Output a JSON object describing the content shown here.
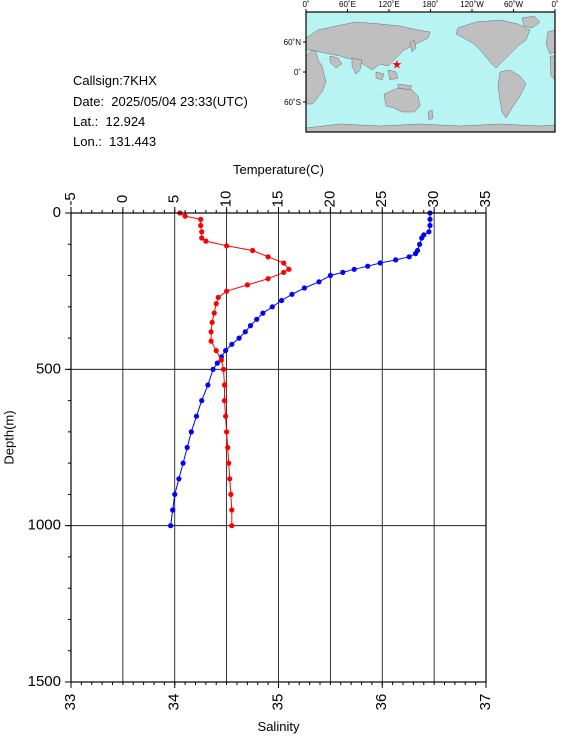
{
  "info": {
    "callsign": "Callsign:7KHX",
    "date": "Date:  2025/05/04 23:33(UTC)",
    "lat": "Lat.:  12.924",
    "lon": "Lon.:  131.443"
  },
  "map": {
    "top_ticks": [
      "0˚",
      "60˚E",
      "120˚E",
      "180˚",
      "120˚W",
      "60˚W",
      "0˚"
    ],
    "left_ticks": [
      "60˚N",
      "0˚",
      "60˚S"
    ],
    "land_color": "#bfbfbf",
    "ocean_color": "#b8f4f4",
    "marker": "red-star",
    "marker_lon": 131.443,
    "marker_lat": 12.924
  },
  "chart_data": {
    "type": "line",
    "top_axis": {
      "label": "Temperature(C)",
      "range": [
        -5,
        35
      ],
      "ticks": [
        "-5",
        "0",
        "5",
        "10",
        "15",
        "20",
        "25",
        "30",
        "35"
      ]
    },
    "bottom_axis": {
      "label": "Salinity",
      "range": [
        33,
        37
      ],
      "ticks": [
        "33",
        "34",
        "35",
        "36",
        "37"
      ]
    },
    "y_axis": {
      "label": "Depth(m)",
      "range": [
        0,
        1500
      ],
      "inverted": true,
      "ticks": [
        "0",
        "500",
        "1000",
        "1500"
      ]
    },
    "grid": true,
    "series": [
      {
        "color": "#0000ff",
        "axis": "temperature",
        "points": [
          [
            29.6,
            0
          ],
          [
            29.6,
            20
          ],
          [
            29.6,
            40
          ],
          [
            29.5,
            60
          ],
          [
            29.0,
            70
          ],
          [
            28.8,
            80
          ],
          [
            28.6,
            100
          ],
          [
            28.4,
            120
          ],
          [
            28.2,
            130
          ],
          [
            27.6,
            140
          ],
          [
            26.3,
            150
          ],
          [
            24.8,
            160
          ],
          [
            23.6,
            170
          ],
          [
            22.3,
            180
          ],
          [
            21.2,
            190
          ],
          [
            20.0,
            200
          ],
          [
            18.9,
            220
          ],
          [
            17.5,
            240
          ],
          [
            16.3,
            260
          ],
          [
            15.3,
            280
          ],
          [
            14.4,
            300
          ],
          [
            13.5,
            320
          ],
          [
            12.9,
            340
          ],
          [
            12.3,
            360
          ],
          [
            11.8,
            380
          ],
          [
            11.2,
            400
          ],
          [
            10.5,
            420
          ],
          [
            9.9,
            440
          ],
          [
            9.5,
            460
          ],
          [
            9.1,
            480
          ],
          [
            8.7,
            500
          ],
          [
            8.2,
            550
          ],
          [
            7.6,
            600
          ],
          [
            7.1,
            650
          ],
          [
            6.6,
            700
          ],
          [
            6.2,
            750
          ],
          [
            5.8,
            800
          ],
          [
            5.4,
            850
          ],
          [
            5.0,
            900
          ],
          [
            4.8,
            950
          ],
          [
            4.6,
            1000
          ]
        ]
      },
      {
        "color": "#ff0000",
        "axis": "salinity",
        "points": [
          [
            34.05,
            0
          ],
          [
            34.1,
            10
          ],
          [
            34.25,
            20
          ],
          [
            34.25,
            40
          ],
          [
            34.26,
            60
          ],
          [
            34.26,
            80
          ],
          [
            34.3,
            90
          ],
          [
            34.5,
            105
          ],
          [
            34.75,
            120
          ],
          [
            34.9,
            140
          ],
          [
            35.05,
            160
          ],
          [
            35.1,
            180
          ],
          [
            35.05,
            190
          ],
          [
            34.9,
            210
          ],
          [
            34.7,
            230
          ],
          [
            34.5,
            250
          ],
          [
            34.42,
            270
          ],
          [
            34.4,
            290
          ],
          [
            34.38,
            320
          ],
          [
            34.36,
            350
          ],
          [
            34.35,
            380
          ],
          [
            34.35,
            410
          ],
          [
            34.4,
            440
          ],
          [
            34.45,
            470
          ],
          [
            34.47,
            500
          ],
          [
            34.48,
            550
          ],
          [
            34.48,
            600
          ],
          [
            34.49,
            650
          ],
          [
            34.5,
            700
          ],
          [
            34.51,
            750
          ],
          [
            34.52,
            800
          ],
          [
            34.53,
            850
          ],
          [
            34.54,
            900
          ],
          [
            34.55,
            950
          ],
          [
            34.55,
            1000
          ]
        ]
      }
    ]
  }
}
